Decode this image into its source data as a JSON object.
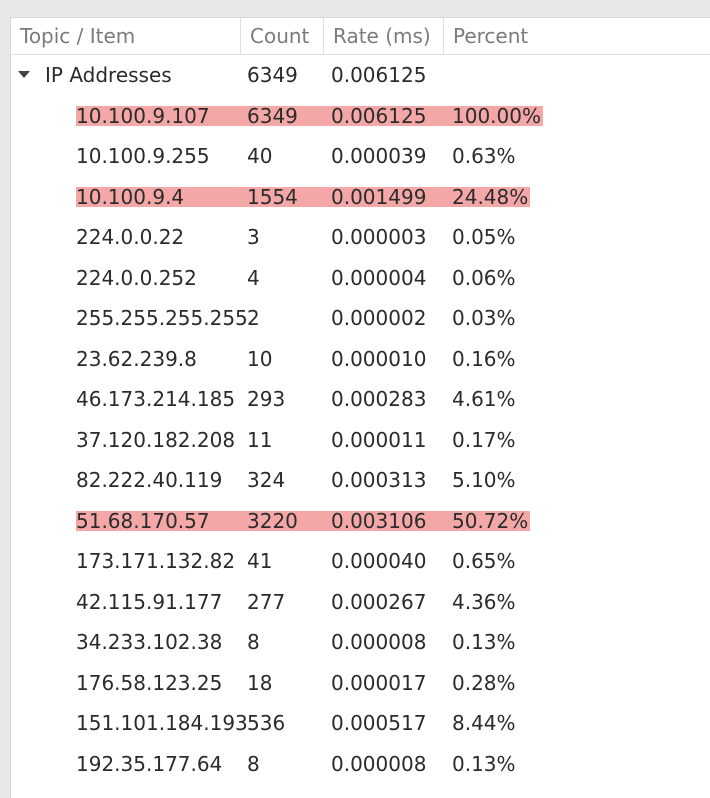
{
  "columns": {
    "topic": "Topic / Item",
    "count": "Count",
    "rate": "Rate (ms)",
    "percent": "Percent"
  },
  "colors": {
    "highlight": "#f4a7a7"
  },
  "group": {
    "label": "IP Addresses",
    "count": "6349",
    "rate": "0.006125",
    "percent": ""
  },
  "rows": [
    {
      "item": "10.100.9.107",
      "count": "6349",
      "rate": "0.006125",
      "percent": "100.00%",
      "highlighted": true
    },
    {
      "item": "10.100.9.255",
      "count": "40",
      "rate": "0.000039",
      "percent": "0.63%",
      "highlighted": false
    },
    {
      "item": "10.100.9.4",
      "count": "1554",
      "rate": "0.001499",
      "percent": "24.48%",
      "highlighted": true
    },
    {
      "item": "224.0.0.22",
      "count": "3",
      "rate": "0.000003",
      "percent": "0.05%",
      "highlighted": false
    },
    {
      "item": "224.0.0.252",
      "count": "4",
      "rate": "0.000004",
      "percent": "0.06%",
      "highlighted": false
    },
    {
      "item": "255.255.255.255",
      "count": "2",
      "rate": "0.000002",
      "percent": "0.03%",
      "highlighted": false
    },
    {
      "item": "23.62.239.8",
      "count": "10",
      "rate": "0.000010",
      "percent": "0.16%",
      "highlighted": false
    },
    {
      "item": "46.173.214.185",
      "count": "293",
      "rate": "0.000283",
      "percent": "4.61%",
      "highlighted": false
    },
    {
      "item": "37.120.182.208",
      "count": "11",
      "rate": "0.000011",
      "percent": "0.17%",
      "highlighted": false
    },
    {
      "item": "82.222.40.119",
      "count": "324",
      "rate": "0.000313",
      "percent": "5.10%",
      "highlighted": false
    },
    {
      "item": "51.68.170.57",
      "count": "3220",
      "rate": "0.003106",
      "percent": "50.72%",
      "highlighted": true
    },
    {
      "item": "173.171.132.82",
      "count": "41",
      "rate": "0.000040",
      "percent": "0.65%",
      "highlighted": false
    },
    {
      "item": "42.115.91.177",
      "count": "277",
      "rate": "0.000267",
      "percent": "4.36%",
      "highlighted": false
    },
    {
      "item": "34.233.102.38",
      "count": "8",
      "rate": "0.000008",
      "percent": "0.13%",
      "highlighted": false
    },
    {
      "item": "176.58.123.25",
      "count": "18",
      "rate": "0.000017",
      "percent": "0.28%",
      "highlighted": false
    },
    {
      "item": "151.101.184.193",
      "count": "536",
      "rate": "0.000517",
      "percent": "8.44%",
      "highlighted": false
    },
    {
      "item": "192.35.177.64",
      "count": "8",
      "rate": "0.000008",
      "percent": "0.13%",
      "highlighted": false
    }
  ]
}
